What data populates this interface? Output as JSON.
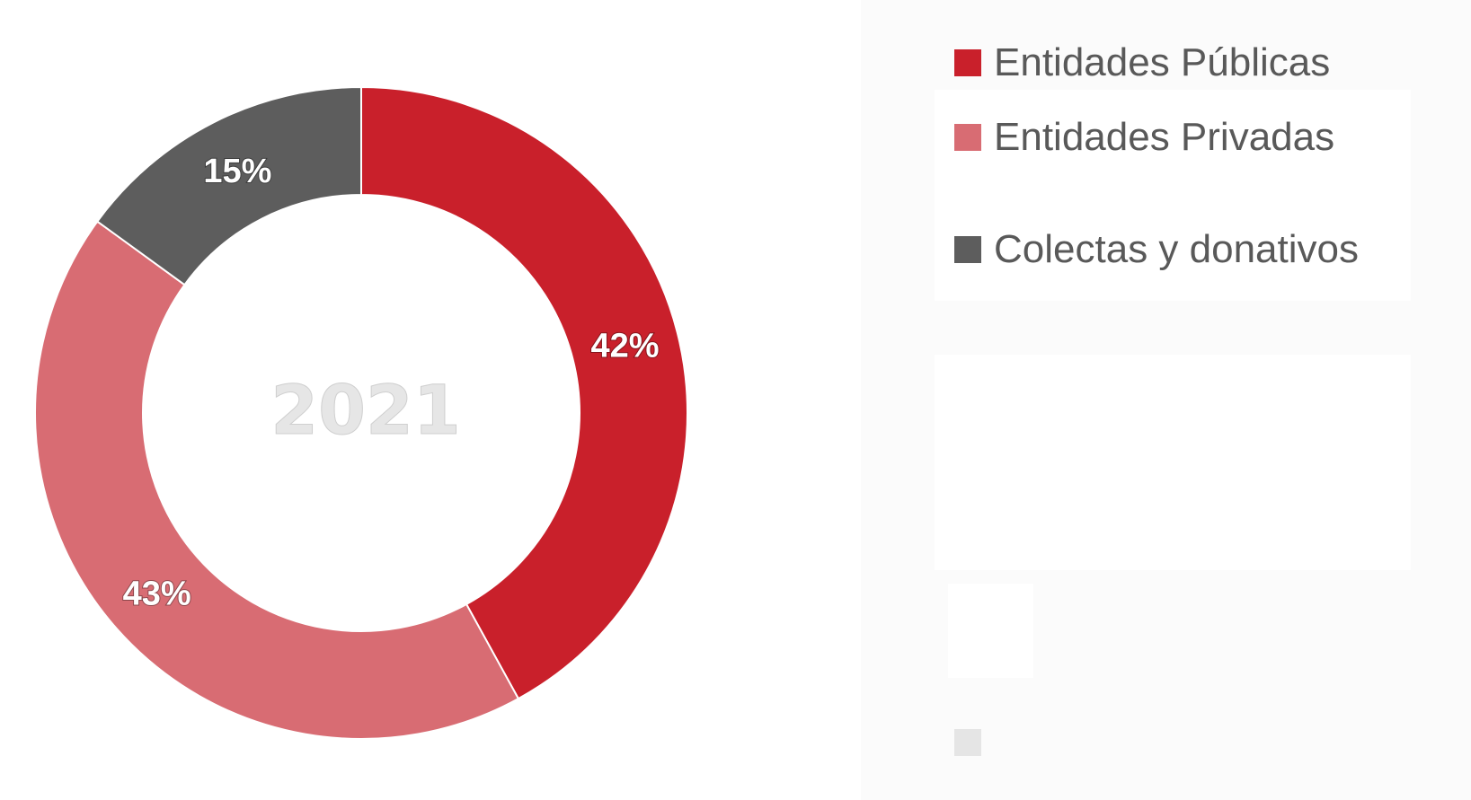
{
  "chart_data": {
    "type": "pie",
    "variant": "donut",
    "center_text": "2021",
    "slices": [
      {
        "name": "Entidades Públicas",
        "value": 42,
        "label": "42%",
        "color": "#c9202b"
      },
      {
        "name": "Entidades Privadas",
        "value": 43,
        "label": "43%",
        "color": "#d86c73"
      },
      {
        "name": "Colectas y donativos",
        "value": 15,
        "label": "15%",
        "color": "#5d5d5d"
      }
    ],
    "legend": {
      "placement": "right",
      "entries": [
        "Entidades Públicas",
        "Entidades Privadas",
        "Colectas y donativos"
      ]
    }
  }
}
